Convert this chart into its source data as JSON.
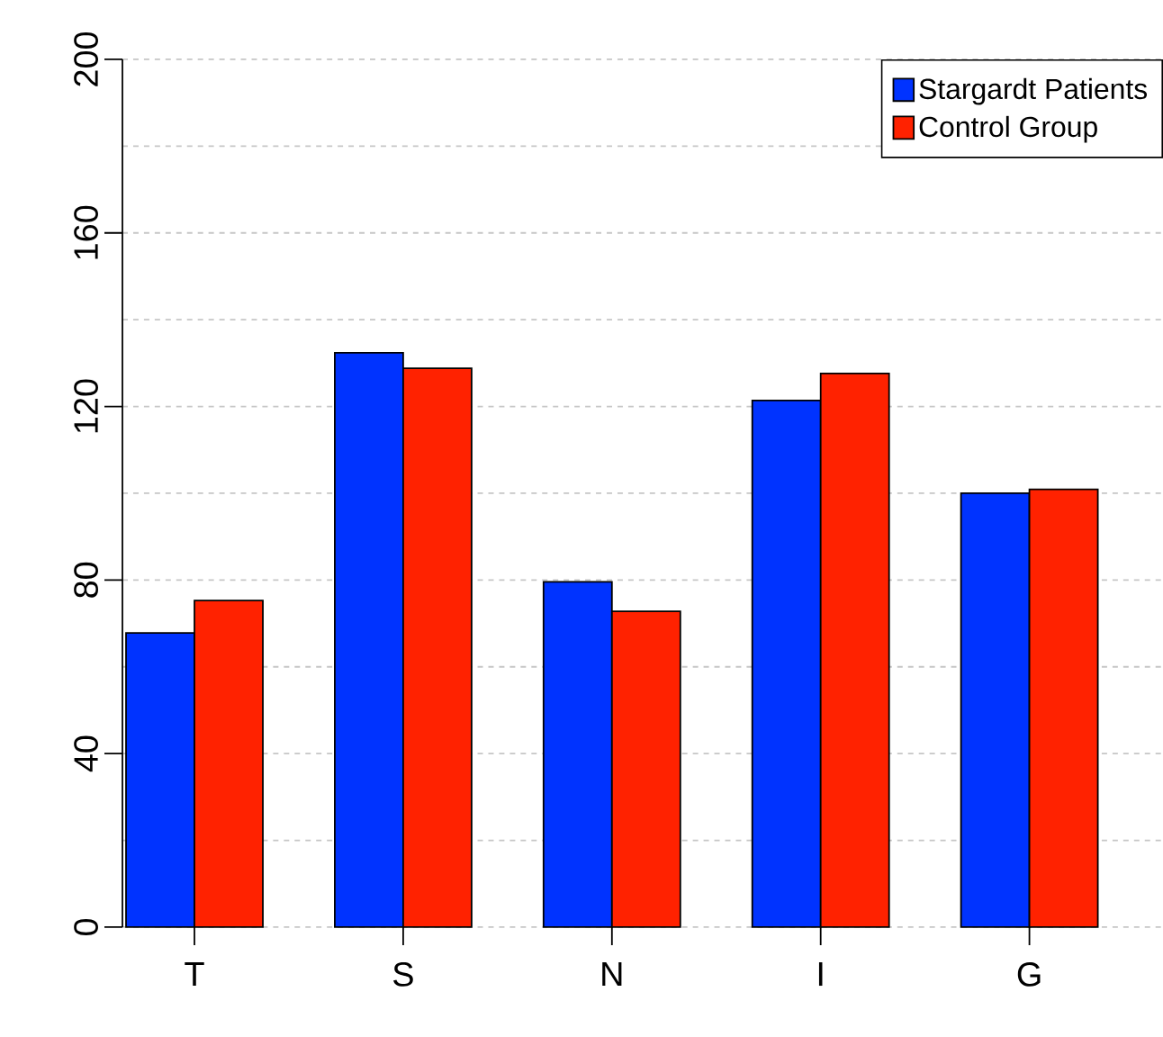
{
  "chart_data": {
    "type": "bar",
    "categories": [
      "T",
      "S",
      "N",
      "I",
      "G"
    ],
    "series": [
      {
        "name": "Stargardt Patients",
        "color": "#0033ff",
        "values": [
          67.8,
          132.4,
          79.6,
          121.4,
          100
        ]
      },
      {
        "name": "Control Group",
        "color": "#ff2200",
        "values": [
          75.3,
          128.8,
          72.8,
          127.6,
          100.9
        ]
      }
    ],
    "ylim": [
      0,
      200
    ],
    "yticks": [
      0,
      {
        "value": 20,
        "label": null
      },
      40,
      {
        "value": 60,
        "label": null
      },
      80,
      {
        "value": 100,
        "label": null
      },
      120,
      {
        "value": 140,
        "label": null
      },
      160,
      {
        "value": 180,
        "label": null
      },
      200
    ],
    "grid": "y",
    "legend": "top right"
  }
}
